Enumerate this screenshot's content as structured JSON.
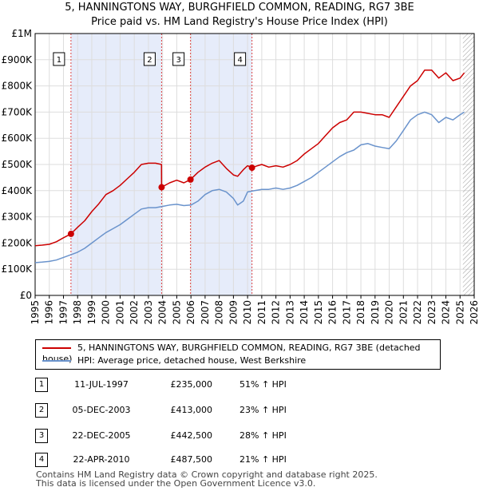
{
  "title_line1": "5, HANNINGTONS WAY, BURGHFIELD COMMON, READING, RG7 3BE",
  "title_line2": "Price paid vs. HM Land Registry's House Price Index (HPI)",
  "colors": {
    "price_line": "#cc0000",
    "hpi_line": "#6a93cc",
    "band": "#e6ecfa",
    "marker_line": "#dd4444",
    "grid": "#dddddd"
  },
  "chart_data": {
    "type": "line",
    "title": "Price paid vs. HM Land Registry's House Price Index (HPI)",
    "xlabel": "",
    "ylabel": "",
    "xlim": [
      1995,
      2026
    ],
    "ylim": [
      0,
      1000000
    ],
    "x_ticks": [
      "1995",
      "1996",
      "1997",
      "1998",
      "1999",
      "2000",
      "2001",
      "2002",
      "2003",
      "2004",
      "2005",
      "2006",
      "2007",
      "2008",
      "2009",
      "2010",
      "2011",
      "2012",
      "2013",
      "2014",
      "2015",
      "2016",
      "2017",
      "2018",
      "2019",
      "2020",
      "2021",
      "2022",
      "2023",
      "2024",
      "2025",
      "2026"
    ],
    "y_ticks": [
      {
        "value": 0,
        "label": "£0"
      },
      {
        "value": 100000,
        "label": "£100K"
      },
      {
        "value": 200000,
        "label": "£200K"
      },
      {
        "value": 300000,
        "label": "£300K"
      },
      {
        "value": 400000,
        "label": "£400K"
      },
      {
        "value": 500000,
        "label": "£500K"
      },
      {
        "value": 600000,
        "label": "£600K"
      },
      {
        "value": 700000,
        "label": "£700K"
      },
      {
        "value": 800000,
        "label": "£800K"
      },
      {
        "value": 900000,
        "label": "£900K"
      },
      {
        "value": 1000000,
        "label": "£1M"
      }
    ],
    "shaded_bands": [
      [
        1997.53,
        2003.93
      ],
      [
        2005.97,
        2010.31
      ]
    ],
    "future_hatch_from": 2025.2,
    "series": [
      {
        "name": "5, HANNINGTONS WAY, BURGHFIELD COMMON, READING, RG7 3BE (detached house)",
        "x": [
          1995.0,
          1995.5,
          1996.0,
          1996.5,
          1997.0,
          1997.53,
          1998.0,
          1998.5,
          1999.0,
          1999.5,
          2000.0,
          2000.5,
          2001.0,
          2001.5,
          2002.0,
          2002.5,
          2003.0,
          2003.5,
          2003.92,
          2003.93,
          2004.5,
          2005.0,
          2005.5,
          2005.97,
          2006.5,
          2007.0,
          2007.5,
          2008.0,
          2008.5,
          2009.0,
          2009.3,
          2009.7,
          2010.0,
          2010.31,
          2010.7,
          2011.0,
          2011.5,
          2012.0,
          2012.5,
          2013.0,
          2013.5,
          2014.0,
          2014.5,
          2015.0,
          2015.5,
          2016.0,
          2016.5,
          2017.0,
          2017.5,
          2018.0,
          2018.5,
          2019.0,
          2019.5,
          2020.0,
          2020.5,
          2021.0,
          2021.5,
          2022.0,
          2022.5,
          2023.0,
          2023.5,
          2024.0,
          2024.5,
          2025.0,
          2025.3
        ],
        "y": [
          190000,
          192000,
          195000,
          205000,
          220000,
          235000,
          260000,
          285000,
          320000,
          350000,
          385000,
          400000,
          420000,
          445000,
          470000,
          500000,
          505000,
          505000,
          500000,
          413000,
          430000,
          440000,
          430000,
          442500,
          470000,
          490000,
          505000,
          515000,
          485000,
          460000,
          455000,
          480000,
          495000,
          487500,
          495000,
          500000,
          490000,
          495000,
          490000,
          500000,
          515000,
          540000,
          560000,
          580000,
          610000,
          640000,
          660000,
          670000,
          700000,
          700000,
          695000,
          690000,
          690000,
          680000,
          720000,
          760000,
          800000,
          820000,
          860000,
          860000,
          830000,
          850000,
          820000,
          830000,
          850000
        ]
      },
      {
        "name": "HPI: Average price, detached house, West Berkshire",
        "x": [
          1995.0,
          1995.5,
          1996.0,
          1996.5,
          1997.0,
          1997.5,
          1998.0,
          1998.5,
          1999.0,
          1999.5,
          2000.0,
          2000.5,
          2001.0,
          2001.5,
          2002.0,
          2002.5,
          2003.0,
          2003.5,
          2004.0,
          2004.5,
          2005.0,
          2005.5,
          2006.0,
          2006.5,
          2007.0,
          2007.5,
          2008.0,
          2008.5,
          2009.0,
          2009.3,
          2009.7,
          2010.0,
          2010.5,
          2011.0,
          2011.5,
          2012.0,
          2012.5,
          2013.0,
          2013.5,
          2014.0,
          2014.5,
          2015.0,
          2015.5,
          2016.0,
          2016.5,
          2017.0,
          2017.5,
          2018.0,
          2018.5,
          2019.0,
          2019.5,
          2020.0,
          2020.5,
          2021.0,
          2021.5,
          2022.0,
          2022.5,
          2023.0,
          2023.5,
          2024.0,
          2024.5,
          2025.0,
          2025.3
        ],
        "y": [
          125000,
          127000,
          130000,
          135000,
          145000,
          155000,
          165000,
          180000,
          200000,
          220000,
          240000,
          255000,
          270000,
          290000,
          310000,
          330000,
          335000,
          335000,
          340000,
          345000,
          348000,
          343000,
          345000,
          360000,
          385000,
          400000,
          405000,
          395000,
          370000,
          345000,
          360000,
          395000,
          400000,
          405000,
          405000,
          410000,
          405000,
          410000,
          420000,
          435000,
          450000,
          470000,
          490000,
          510000,
          530000,
          545000,
          555000,
          575000,
          580000,
          570000,
          565000,
          560000,
          590000,
          630000,
          670000,
          690000,
          700000,
          690000,
          660000,
          680000,
          670000,
          690000,
          700000
        ]
      }
    ],
    "markers": [
      {
        "label": "1",
        "x": 1997.53,
        "y": 235000
      },
      {
        "label": "2",
        "x": 2003.93,
        "y": 413000
      },
      {
        "label": "3",
        "x": 2005.97,
        "y": 442500
      },
      {
        "label": "4",
        "x": 2010.31,
        "y": 487500
      }
    ],
    "legend_position": "bottom"
  },
  "legend": {
    "price_label": "5, HANNINGTONS WAY, BURGHFIELD COMMON, READING, RG7 3BE (detached house)",
    "hpi_label": "HPI: Average price, detached house, West Berkshire"
  },
  "sales": [
    {
      "num": "1",
      "date": "11-JUL-1997",
      "price": "£235,000",
      "hpi": "51% ↑ HPI"
    },
    {
      "num": "2",
      "date": "05-DEC-2003",
      "price": "£413,000",
      "hpi": "23% ↑ HPI"
    },
    {
      "num": "3",
      "date": "22-DEC-2005",
      "price": "£442,500",
      "hpi": "28% ↑ HPI"
    },
    {
      "num": "4",
      "date": "22-APR-2010",
      "price": "£487,500",
      "hpi": "21% ↑ HPI"
    }
  ],
  "footer": {
    "line1": "Contains HM Land Registry data © Crown copyright and database right 2025.",
    "line2": "This data is licensed under the Open Government Licence v3.0."
  }
}
